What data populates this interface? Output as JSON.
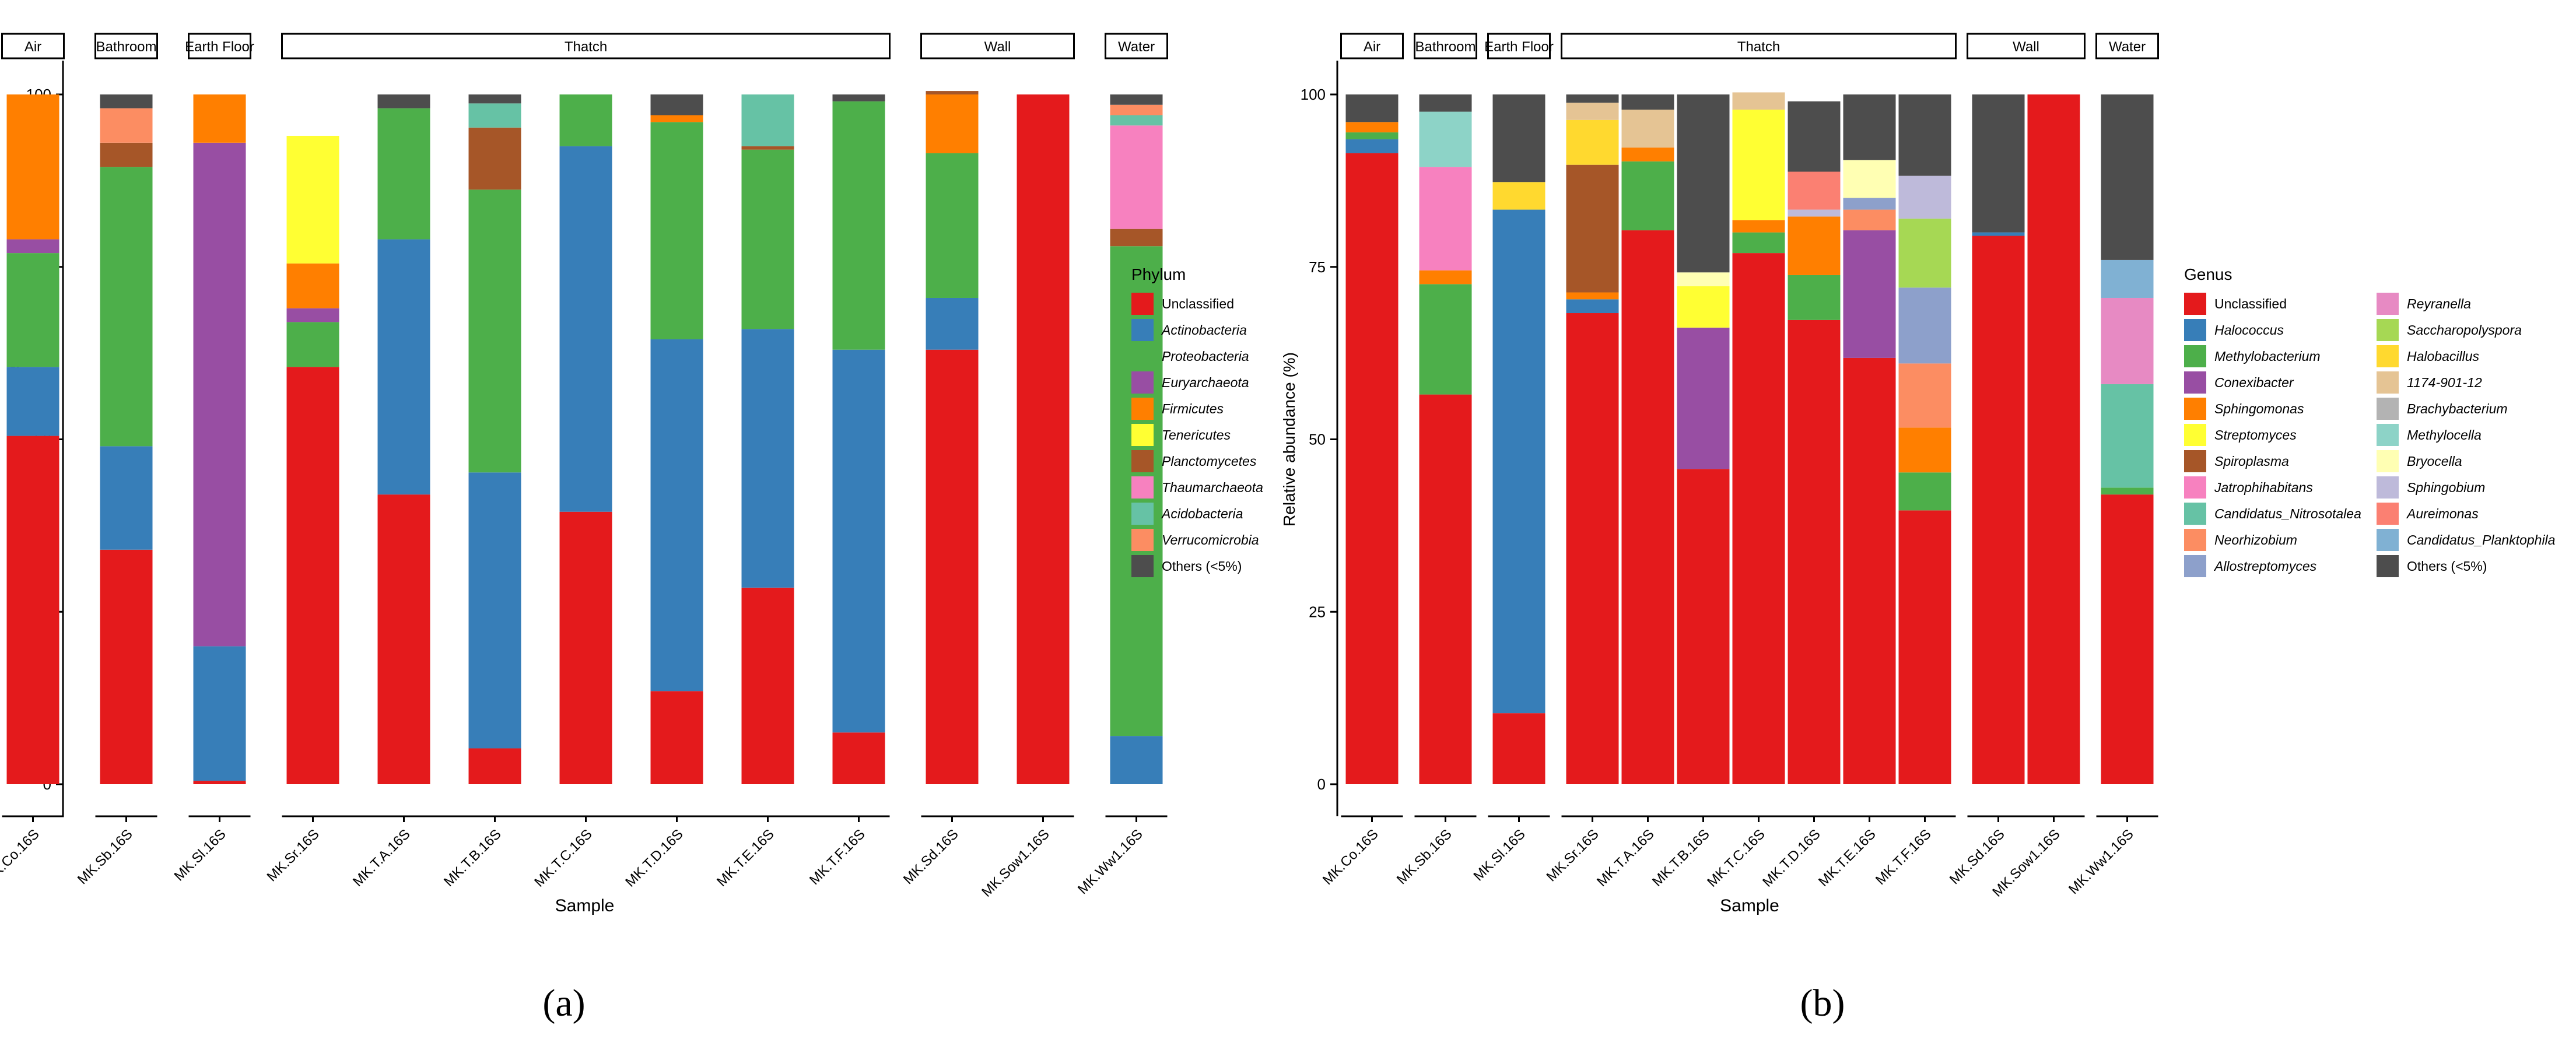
{
  "figure": {
    "panels": [
      "(a)",
      "(b)"
    ],
    "common": {
      "xlabel": "Sample",
      "ylabel": "Relative abundance (%)",
      "yticks": [
        0,
        25,
        50,
        75,
        100
      ],
      "groups": [
        {
          "name": "Air",
          "samples": [
            "MK.Co.16S"
          ]
        },
        {
          "name": "Bathroom",
          "samples": [
            "MK.Sb.16S"
          ]
        },
        {
          "name": "Earth Floor",
          "samples": [
            "MK.Sl.16S"
          ]
        },
        {
          "name": "Thatch",
          "samples": [
            "MK.Sr.16S",
            "MK.T.A.16S",
            "MK.T.B.16S",
            "MK.T.C.16S",
            "MK.T.D.16S",
            "MK.T.E.16S",
            "MK.T.F.16S"
          ]
        },
        {
          "name": "Wall",
          "samples": [
            "MK.Sd.16S",
            "MK.Sow1.16S"
          ]
        },
        {
          "name": "Water",
          "samples": [
            "MK.Ww1.16S"
          ]
        }
      ]
    }
  },
  "chart_data": [
    {
      "type": "bar",
      "stacked": true,
      "panel": "(a)",
      "xlabel": "Sample",
      "ylabel": "Relative abundance (%)",
      "ylim": [
        0,
        100
      ],
      "legend_title": "Phylum",
      "legend_position": "right",
      "categories": [
        "MK.Co.16S",
        "MK.Sb.16S",
        "MK.Sl.16S",
        "MK.Sr.16S",
        "MK.T.A.16S",
        "MK.T.B.16S",
        "MK.T.C.16S",
        "MK.T.D.16S",
        "MK.T.E.16S",
        "MK.T.F.16S",
        "MK.Sd.16S",
        "MK.Sow1.16S",
        "MK.Ww1.16S"
      ],
      "series": [
        {
          "name": "Unclassified",
          "color": "#E41A1C",
          "values": [
            50.5,
            34,
            0.5,
            60.5,
            42,
            5.2,
            39.5,
            13.5,
            28.5,
            7.5,
            63,
            100,
            0
          ]
        },
        {
          "name": "Actinobacteria",
          "color": "#377EB8",
          "values": [
            10,
            15,
            19.5,
            0,
            37,
            40,
            53,
            51,
            37.5,
            55.5,
            7.5,
            0,
            7
          ]
        },
        {
          "name": "Proteobacteria",
          "color": "#4DAF4A",
          "values": [
            16.5,
            40.5,
            0,
            6.5,
            19,
            41,
            7.5,
            31.5,
            26,
            36,
            21,
            0,
            71
          ]
        },
        {
          "name": "Euryarchaeota",
          "color": "#984EA3",
          "values": [
            2,
            0,
            73,
            2,
            0,
            0,
            0,
            0,
            0,
            0,
            0,
            0,
            0
          ]
        },
        {
          "name": "Firmicutes",
          "color": "#FF7F00",
          "values": [
            21,
            0,
            7,
            6.5,
            0,
            0,
            0,
            1,
            0,
            0,
            8.5,
            0,
            0
          ]
        },
        {
          "name": "Tenericutes",
          "color": "#FFFF33",
          "values": [
            0,
            0,
            0,
            18.5,
            0,
            0,
            0,
            0,
            0,
            0,
            0,
            0,
            0
          ]
        },
        {
          "name": "Planctomycetes",
          "color": "#A65628",
          "values": [
            0,
            3.5,
            0,
            0,
            0,
            9,
            0,
            0,
            0.5,
            0,
            0.5,
            0,
            2.5
          ]
        },
        {
          "name": "Thaumarchaeota",
          "color": "#F781BF",
          "values": [
            0,
            0,
            0,
            0,
            0,
            0,
            0,
            0,
            0,
            0,
            0,
            0,
            15
          ]
        },
        {
          "name": "Acidobacteria",
          "color": "#66C2A5",
          "values": [
            0,
            0,
            0,
            0,
            0,
            3.5,
            0,
            0,
            7.5,
            0,
            0,
            0,
            1.5
          ]
        },
        {
          "name": "Verrucomicrobia",
          "color": "#FC8D62",
          "values": [
            0,
            5,
            0,
            0,
            0,
            0,
            0,
            0,
            0,
            0,
            0,
            0,
            1.5
          ]
        },
        {
          "name": "Others (<5%)",
          "color": "#4D4D4D",
          "values": [
            0,
            2,
            0,
            0,
            2,
            1.3,
            0,
            3,
            0,
            1,
            0,
            0,
            1.5
          ]
        }
      ]
    },
    {
      "type": "bar",
      "stacked": true,
      "panel": "(b)",
      "xlabel": "Sample",
      "ylabel": "Relative abundance (%)",
      "ylim": [
        0,
        100
      ],
      "legend_title": "Genus",
      "legend_position": "right",
      "categories": [
        "MK.Co.16S",
        "MK.Sb.16S",
        "MK.Sl.16S",
        "MK.Sr.16S",
        "MK.T.A.16S",
        "MK.T.B.16S",
        "MK.T.C.16S",
        "MK.T.D.16S",
        "MK.T.E.16S",
        "MK.T.F.16S",
        "MK.Sd.16S",
        "MK.Sow1.16S",
        "MK.Ww1.16S"
      ],
      "series": [
        {
          "name": "Unclassified",
          "color": "#E41A1C",
          "values": [
            91.5,
            56.5,
            10.3,
            68.3,
            80.3,
            45.7,
            77,
            67.3,
            61.8,
            39.7,
            79.5,
            100,
            42
          ]
        },
        {
          "name": "Halococcus",
          "color": "#377EB8",
          "values": [
            2,
            0,
            73,
            2,
            0,
            0,
            0,
            0,
            0,
            0,
            0.5,
            0,
            0
          ]
        },
        {
          "name": "Methylobacterium",
          "color": "#4DAF4A",
          "values": [
            1,
            16,
            0,
            0,
            10,
            0,
            3,
            6.5,
            0,
            5.5,
            0,
            0,
            1
          ]
        },
        {
          "name": "Conexibacter",
          "color": "#984EA3",
          "values": [
            0,
            0,
            0,
            0,
            0,
            20.5,
            0,
            0,
            18.5,
            0,
            0,
            0,
            0
          ]
        },
        {
          "name": "Sphingomonas",
          "color": "#FF7F00",
          "values": [
            1.5,
            2,
            0,
            1,
            2,
            0,
            1.8,
            8.5,
            0,
            6.5,
            0,
            0,
            0
          ]
        },
        {
          "name": "Streptomyces",
          "color": "#FFFF33",
          "values": [
            0,
            0,
            0,
            0,
            0,
            6,
            16,
            0,
            0,
            0,
            0,
            0,
            0
          ]
        },
        {
          "name": "Spiroplasma",
          "color": "#A65628",
          "values": [
            0,
            0,
            0,
            18.5,
            0,
            0,
            0,
            0,
            0,
            0,
            0,
            0,
            0
          ]
        },
        {
          "name": "Jatrophihabitans",
          "color": "#F781BF",
          "values": [
            0,
            15,
            0,
            0,
            0,
            0,
            0,
            0,
            0,
            0,
            0,
            0,
            0
          ]
        },
        {
          "name": "Candidatus_Nitrosotalea",
          "color": "#66C2A5",
          "values": [
            0,
            0,
            0,
            0,
            0,
            0,
            0,
            0,
            0,
            0,
            0,
            0,
            15
          ]
        },
        {
          "name": "Neorhizobium",
          "color": "#FC8D62",
          "values": [
            0,
            0,
            0,
            0,
            0,
            0,
            0,
            0,
            3,
            9.3,
            0,
            0,
            0
          ]
        },
        {
          "name": "Allostreptomyces",
          "color": "#8DA0CB",
          "values": [
            0,
            0,
            0,
            0,
            0,
            0,
            0,
            0,
            1.7,
            11,
            0,
            0,
            0
          ]
        },
        {
          "name": "Reyranella",
          "color": "#E78AC3",
          "values": [
            0,
            0,
            0,
            0,
            0,
            0,
            0,
            0,
            0,
            0,
            0,
            0,
            12.5
          ]
        },
        {
          "name": "Saccharopolyspora",
          "color": "#A6D854",
          "values": [
            0,
            0,
            0,
            0,
            0,
            0,
            0,
            0,
            0,
            10,
            0,
            0,
            0
          ]
        },
        {
          "name": "Halobacillus",
          "color": "#FFD92F",
          "values": [
            0,
            0,
            4,
            6.5,
            0,
            0,
            0,
            0,
            0,
            0,
            0,
            0,
            0
          ]
        },
        {
          "name": "1174-901-12",
          "color": "#E5C494",
          "values": [
            0,
            0,
            0,
            2.5,
            5.5,
            0,
            2.5,
            0,
            0,
            0,
            0,
            0,
            0
          ]
        },
        {
          "name": "Brachybacterium",
          "color": "#B3B3B3",
          "values": [
            0,
            0,
            0,
            0,
            0,
            0,
            0,
            0,
            0,
            0,
            0,
            0,
            0
          ]
        },
        {
          "name": "Methylocella",
          "color": "#8DD3C7",
          "values": [
            0,
            8,
            0,
            0,
            0,
            0,
            0,
            0,
            0,
            0,
            0,
            0,
            0
          ]
        },
        {
          "name": "Bryocella",
          "color": "#FFFFB3",
          "values": [
            0,
            0,
            0,
            0,
            0,
            2,
            0,
            0,
            5.5,
            0,
            0,
            0,
            0
          ]
        },
        {
          "name": "Sphingobium",
          "color": "#BEBADA",
          "values": [
            0,
            0,
            0,
            0,
            0,
            0,
            0,
            1,
            0,
            6.2,
            0,
            0,
            0
          ]
        },
        {
          "name": "Aureimonas",
          "color": "#FB8072",
          "values": [
            0,
            0,
            0,
            0,
            0,
            0,
            0,
            5.5,
            0,
            0,
            0,
            0,
            0
          ]
        },
        {
          "name": "Candidatus_Planktophila",
          "color": "#80B1D3",
          "values": [
            0,
            0,
            0,
            0,
            0,
            0,
            0,
            0,
            0,
            0,
            0,
            0,
            5.5
          ]
        },
        {
          "name": "Others (<5%)",
          "color": "#4D4D4D",
          "values": [
            4,
            2.5,
            12.7,
            1.2,
            2.2,
            25.8,
            -0.3,
            10.2,
            9.5,
            11.8,
            20,
            0,
            24
          ]
        }
      ]
    }
  ]
}
